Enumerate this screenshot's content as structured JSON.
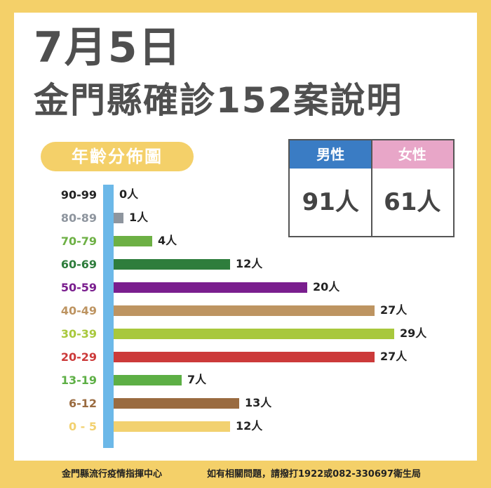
{
  "header": {
    "date": "7月5日",
    "headline": "金門縣確診152案說明"
  },
  "age_badge": "年齡分佈圖",
  "gender": {
    "male_label": "男性",
    "female_label": "女性",
    "male_value": "91人",
    "female_value": "61人",
    "male_color": "#3A7CC4",
    "female_color": "#E8A6C8"
  },
  "chart_data": {
    "type": "bar",
    "orientation": "horizontal",
    "title": "年齡分佈圖",
    "categories": [
      "90-99",
      "80-89",
      "70-79",
      "60-69",
      "50-59",
      "40-49",
      "30-39",
      "20-29",
      "13-19",
      "6-12",
      "0 - 5"
    ],
    "values": [
      0,
      1,
      4,
      12,
      20,
      27,
      29,
      27,
      7,
      13,
      12
    ],
    "value_labels": [
      "0人",
      "1人",
      "4人",
      "12人",
      "20人",
      "27人",
      "29人",
      "27人",
      "7人",
      "13人",
      "12人"
    ],
    "colors": [
      "#222222",
      "#8E959E",
      "#6DB044",
      "#2E7D3C",
      "#7A1E8E",
      "#BD9461",
      "#A8C83C",
      "#CC3A3A",
      "#5DAF45",
      "#9A6B40",
      "#F2D170"
    ],
    "xlim": [
      0,
      29
    ]
  },
  "footer": {
    "left": "金門縣流行疫情指揮中心",
    "right": "如有相關問題，請撥打1922或082-330697衛生局"
  }
}
